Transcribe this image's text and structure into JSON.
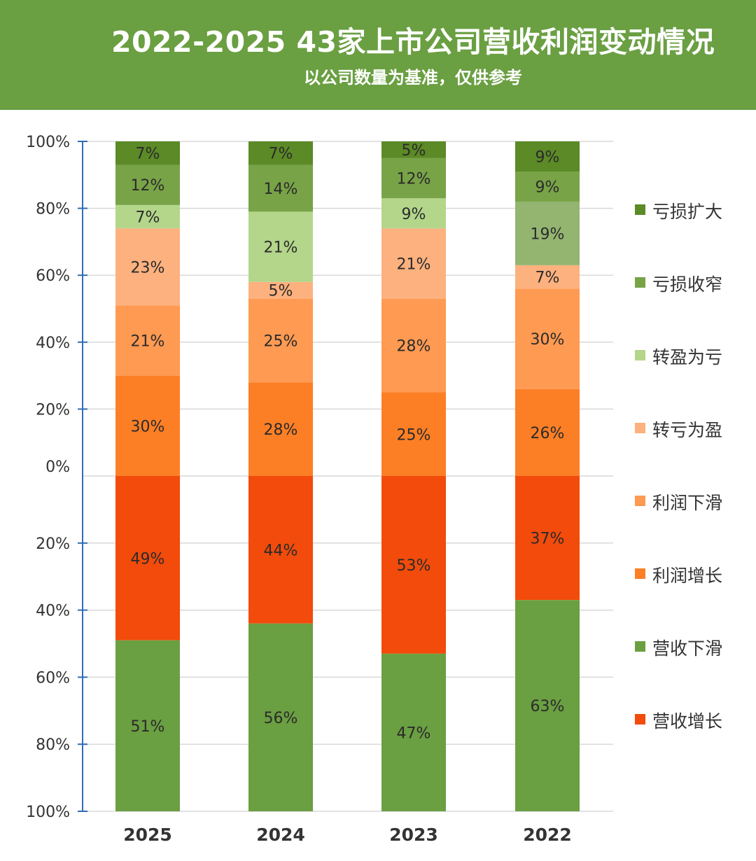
{
  "header": {
    "title": "2022-2025 43家上市公司营收利润变动情况",
    "subtitle": "以公司数量为基准，仅供参考",
    "background": "#6a9f42"
  },
  "chart_data": {
    "type": "bar",
    "stacked": true,
    "diverging": true,
    "categories": [
      "2025",
      "2024",
      "2023",
      "2022"
    ],
    "upper_axis_ticks": [
      "0%",
      "20%",
      "40%",
      "60%",
      "80%",
      "100%"
    ],
    "lower_axis_ticks": [
      "20%",
      "40%",
      "60%",
      "80%",
      "100%"
    ],
    "upper_ylim": [
      0,
      100
    ],
    "lower_ylim": [
      0,
      100
    ],
    "grid": true,
    "legend_position": "right",
    "upper_series": [
      {
        "name": "利润增长",
        "color": "#fd7f25",
        "values": [
          30,
          28,
          25,
          26
        ],
        "labels": [
          "30%",
          "28%",
          "25%",
          "26%"
        ]
      },
      {
        "name": "利润下滑",
        "color": "#fe9a52",
        "values": [
          21,
          25,
          28,
          30
        ],
        "labels": [
          "21%",
          "25%",
          "28%",
          "30%"
        ]
      },
      {
        "name": "转亏为盈",
        "color": "#fdb17e",
        "values": [
          23,
          5,
          21,
          7
        ],
        "labels": [
          "23%",
          "5%",
          "21%",
          "7%"
        ]
      },
      {
        "name": "转盈为亏",
        "color": "#b3d68a",
        "values": [
          7,
          21,
          9,
          19
        ],
        "labels": [
          "7%",
          "21%",
          "9%",
          "19%"
        ],
        "overrides": {
          "2022": "#93b570"
        }
      },
      {
        "name": "亏损收窄",
        "color": "#78a347",
        "values": [
          12,
          14,
          12,
          9
        ],
        "labels": [
          "12%",
          "14%",
          "12%",
          "9%"
        ]
      },
      {
        "name": "亏损扩大",
        "color": "#5b8a26",
        "values": [
          7,
          7,
          5,
          9
        ],
        "labels": [
          "7%",
          "7%",
          "5%",
          "9%"
        ]
      }
    ],
    "lower_series": [
      {
        "name": "营收增长",
        "color": "#f24b0b",
        "values": [
          49,
          44,
          53,
          37
        ],
        "labels": [
          "49%",
          "44%",
          "53%",
          "37%"
        ]
      },
      {
        "name": "营收下滑",
        "color": "#6a9f42",
        "values": [
          51,
          56,
          47,
          63
        ],
        "labels": [
          "51%",
          "56%",
          "47%",
          "63%"
        ]
      }
    ],
    "legend": [
      {
        "name": "亏损扩大",
        "color": "#5b8a26"
      },
      {
        "name": "亏损收窄",
        "color": "#78a347"
      },
      {
        "name": "转盈为亏",
        "color": "#b3d68a"
      },
      {
        "name": "转亏为盈",
        "color": "#fdb17e"
      },
      {
        "name": "利润下滑",
        "color": "#fe9a52"
      },
      {
        "name": "利润增长",
        "color": "#fd7f25"
      },
      {
        "name": "营收下滑",
        "color": "#6a9f42"
      },
      {
        "name": "营收增长",
        "color": "#f24b0b"
      }
    ]
  }
}
